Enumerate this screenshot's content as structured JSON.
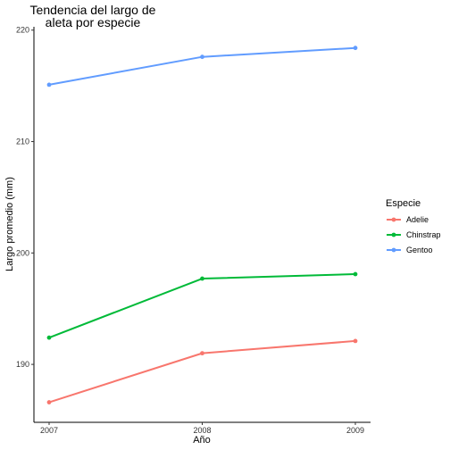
{
  "chart_data": {
    "type": "line",
    "title_lines": [
      "Tendencia del largo de",
      "aleta por especie"
    ],
    "xlabel": "Año",
    "ylabel": "Largo promedio (mm)",
    "x": [
      "2007",
      "2008",
      "2009"
    ],
    "yticks": [
      "190",
      "200",
      "210",
      "220"
    ],
    "ylim": [
      184.8,
      220.3
    ],
    "grid": false,
    "legend": {
      "title": "Especie",
      "position": "right"
    },
    "series": [
      {
        "name": "Adelie",
        "color": "#F8766D",
        "values": [
          186.6,
          191.0,
          192.1
        ]
      },
      {
        "name": "Chinstrap",
        "color": "#00BA38",
        "values": [
          192.4,
          197.7,
          198.1
        ]
      },
      {
        "name": "Gentoo",
        "color": "#619CFF",
        "values": [
          215.1,
          217.6,
          218.4
        ]
      }
    ]
  }
}
